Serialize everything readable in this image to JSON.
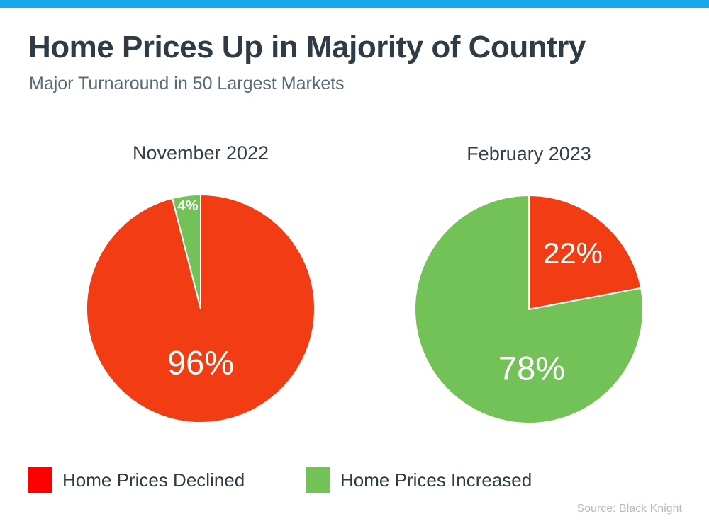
{
  "page": {
    "topbar_color": "#18A9EA",
    "background_color": "#FFFFFF"
  },
  "header": {
    "title": "Home Prices Up in Majority of Country",
    "subtitle": "Major Turnaround in 50 Largest Markets"
  },
  "legend": [
    {
      "label": "Home Prices Declined",
      "color": "#FF0000"
    },
    {
      "label": "Home Prices Increased",
      "color": "#73C257"
    }
  ],
  "source": "Source: Black Knight",
  "chart_data": [
    {
      "type": "pie",
      "title": "November 2022",
      "unit": "percent of 50 largest markets",
      "start_angle_deg": 0,
      "direction": "clockwise",
      "slices": [
        {
          "label": "Home Prices Declined",
          "value": 96,
          "display": "96%",
          "color": "#F23C14"
        },
        {
          "label": "Home Prices Increased",
          "value": 4,
          "display": "4%",
          "color": "#73C257"
        }
      ]
    },
    {
      "type": "pie",
      "title": "February 2023",
      "unit": "percent of 50 largest markets",
      "start_angle_deg": 0,
      "direction": "clockwise",
      "slices": [
        {
          "label": "Home Prices Declined",
          "value": 22,
          "display": "22%",
          "color": "#F23C14"
        },
        {
          "label": "Home Prices Increased",
          "value": 78,
          "display": "78%",
          "color": "#73C257"
        }
      ]
    }
  ]
}
